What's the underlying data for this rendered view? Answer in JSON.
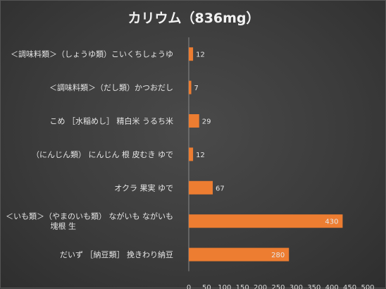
{
  "chart_data": {
    "type": "bar",
    "orientation": "horizontal",
    "title": "カリウム（836mg）",
    "categories": [
      [
        "＜調味料類＞（しょうゆ類）こいくちしょうゆ"
      ],
      [
        "＜調味料類＞（だし類）かつおだし"
      ],
      [
        "こめ ［水稲めし］ 精白米 うるち米"
      ],
      [
        "（にんじん類） にんじん 根 皮むき ゆで"
      ],
      [
        "オクラ 果実 ゆで"
      ],
      [
        "＜いも類＞（やまのいも類） ながいも ながいも",
        "塊根 生"
      ],
      [
        "だいず ［納豆類］ 挽きわり納豆"
      ]
    ],
    "values": [
      12,
      7,
      29,
      12,
      67,
      430,
      280
    ],
    "xlim": [
      0,
      500
    ],
    "xticks": [
      0,
      50,
      100,
      150,
      200,
      250,
      300,
      350,
      400,
      450,
      500
    ],
    "bar_color": "#ed7d31",
    "grid": false,
    "legend": "none"
  }
}
